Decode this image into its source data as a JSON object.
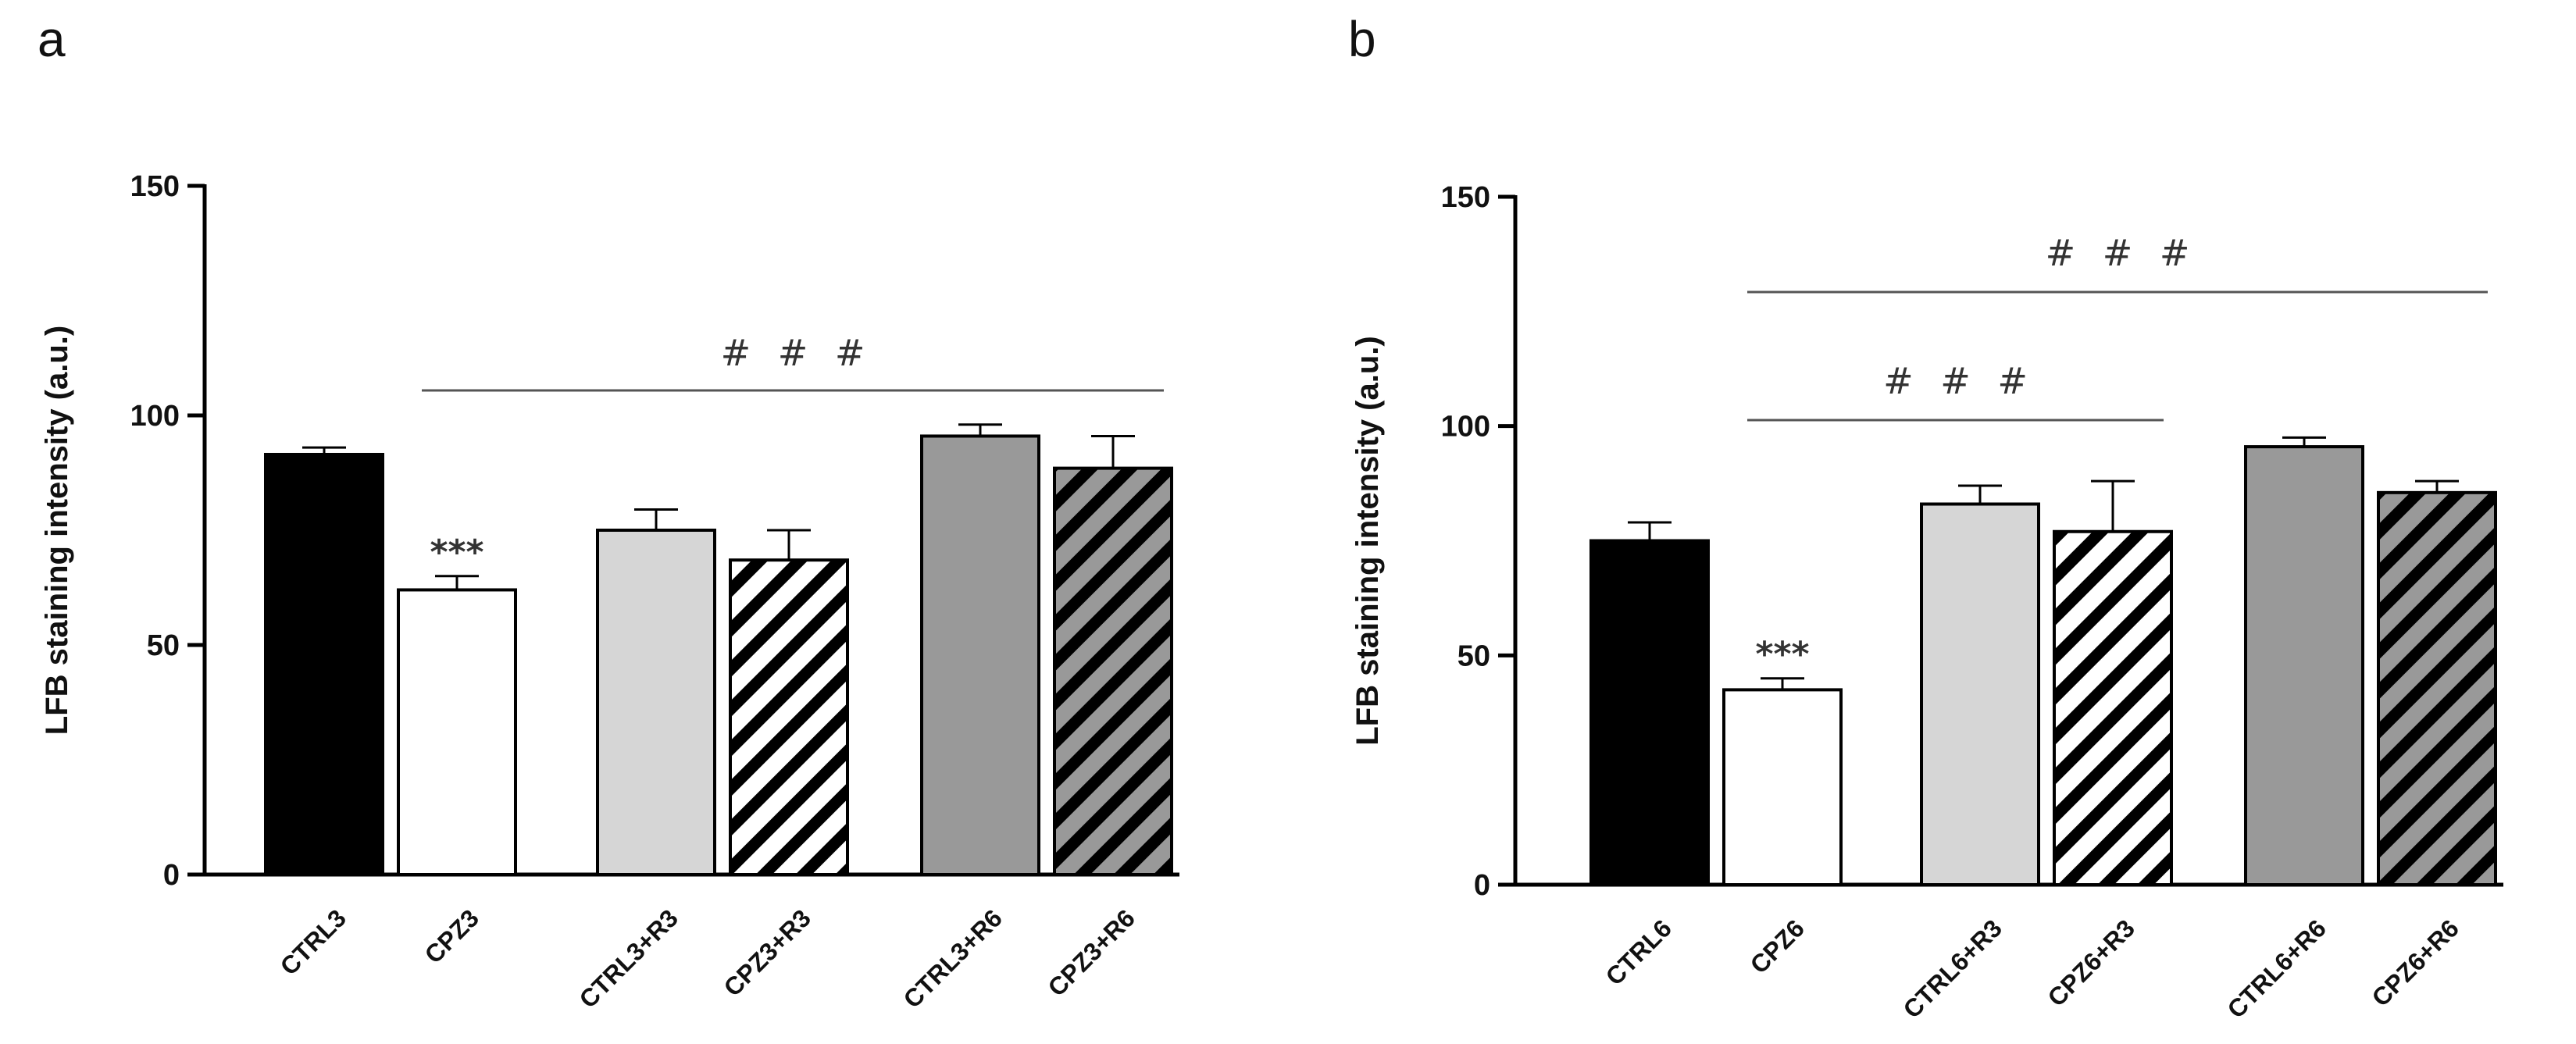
{
  "chart_data": [
    {
      "type": "bar",
      "panel": "a",
      "title": "",
      "xlabel": "",
      "ylabel": "LFB staining intensity (a.u.)",
      "ylim": [
        0,
        150
      ],
      "yticks": [
        0,
        50,
        100,
        150
      ],
      "categories": [
        "CTRL3",
        "CPZ3",
        "CTRL3+R3",
        "CPZ3+R3",
        "CTRL3+R6",
        "CPZ3+R6"
      ],
      "values": [
        91.5,
        62,
        75,
        68.5,
        95.5,
        88.5
      ],
      "errors": [
        1.5,
        3,
        4.5,
        6.5,
        2.5,
        7
      ],
      "fills": [
        "black",
        "white",
        "lightgray",
        "hatch-white",
        "gray",
        "hatch-gray"
      ],
      "bar_annotations": [
        {
          "category": "CPZ3",
          "text": "***"
        }
      ],
      "brackets": [
        {
          "from": "CPZ3",
          "to": "CPZ3+R6",
          "label": "###"
        }
      ]
    },
    {
      "type": "bar",
      "panel": "b",
      "title": "",
      "xlabel": "",
      "ylabel": "LFB staining intensity (a.u.)",
      "ylim": [
        0,
        150
      ],
      "yticks": [
        0,
        50,
        100,
        150
      ],
      "categories": [
        "CTRL6",
        "CPZ6",
        "CTRL6+R3",
        "CPZ6+R3",
        "CTRL6+R6",
        "CPZ6+R6"
      ],
      "values": [
        75,
        42.5,
        83,
        77,
        95.5,
        85.5
      ],
      "errors": [
        4,
        2.5,
        4,
        11,
        2,
        2.5
      ],
      "fills": [
        "black",
        "white",
        "lightgray",
        "hatch-white",
        "gray",
        "hatch-gray"
      ],
      "bar_annotations": [
        {
          "category": "CPZ6",
          "text": "***"
        }
      ],
      "brackets": [
        {
          "from": "CPZ6",
          "to": "CPZ6+R6",
          "label": "###"
        },
        {
          "from": "CPZ6",
          "to": "CPZ6+R3",
          "label": "###"
        }
      ]
    }
  ],
  "colors": {
    "black": "#000000",
    "white": "#ffffff",
    "lightgray": "#d6d6d6",
    "gray": "#999999",
    "axis": "#000000",
    "bracket": "#555555"
  }
}
